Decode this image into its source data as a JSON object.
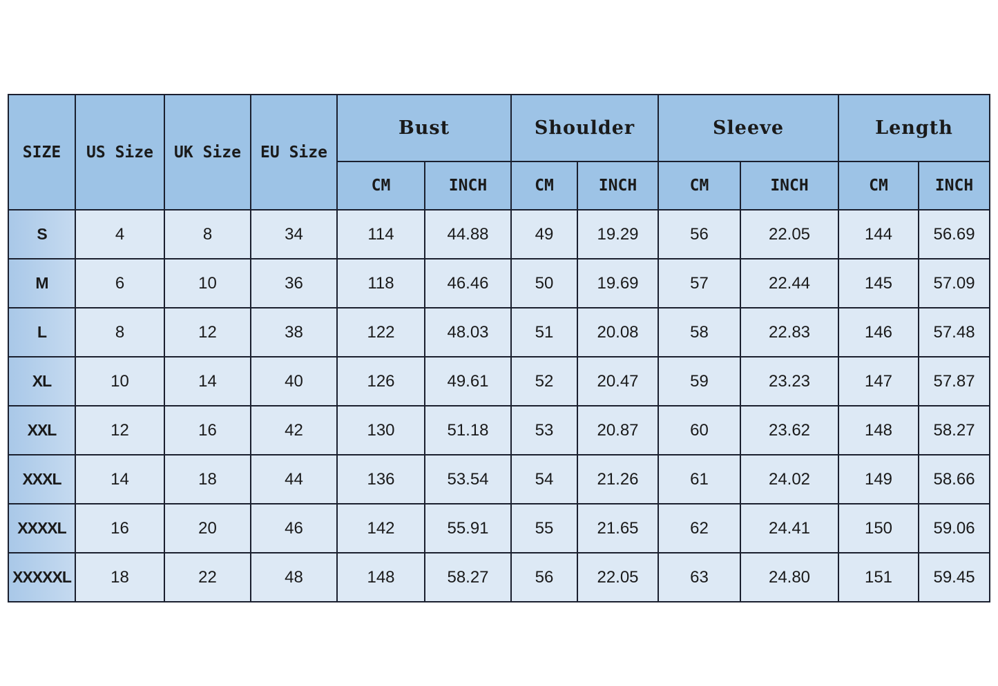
{
  "headers": {
    "size": "SIZE",
    "us": "US Size",
    "uk": "UK Size",
    "eu": "EU Size",
    "groups": [
      "Bust",
      "Shoulder",
      "Sleeve",
      "Length"
    ],
    "units": [
      "CM",
      "INCH",
      "CM",
      "INCH",
      "CM",
      "INCH",
      "CM",
      "INCH"
    ]
  },
  "rows": [
    [
      "S",
      "4",
      "8",
      "34",
      "114",
      "44.88",
      "49",
      "19.29",
      "56",
      "22.05",
      "144",
      "56.69"
    ],
    [
      "M",
      "6",
      "10",
      "36",
      "118",
      "46.46",
      "50",
      "19.69",
      "57",
      "22.44",
      "145",
      "57.09"
    ],
    [
      "L",
      "8",
      "12",
      "38",
      "122",
      "48.03",
      "51",
      "20.08",
      "58",
      "22.83",
      "146",
      "57.48"
    ],
    [
      "XL",
      "10",
      "14",
      "40",
      "126",
      "49.61",
      "52",
      "20.47",
      "59",
      "23.23",
      "147",
      "57.87"
    ],
    [
      "XXL",
      "12",
      "16",
      "42",
      "130",
      "51.18",
      "53",
      "20.87",
      "60",
      "23.62",
      "148",
      "58.27"
    ],
    [
      "XXXL",
      "14",
      "18",
      "44",
      "136",
      "53.54",
      "54",
      "21.26",
      "61",
      "24.02",
      "149",
      "58.66"
    ],
    [
      "XXXXL",
      "16",
      "20",
      "46",
      "142",
      "55.91",
      "55",
      "21.65",
      "62",
      "24.41",
      "150",
      "59.06"
    ],
    [
      "XXXXXL",
      "18",
      "22",
      "48",
      "148",
      "58.27",
      "56",
      "22.05",
      "63",
      "24.80",
      "151",
      "59.45"
    ]
  ],
  "colors": {
    "header": "#9dc3e6",
    "body": "#dde9f5",
    "border": "#1a1f2e"
  }
}
